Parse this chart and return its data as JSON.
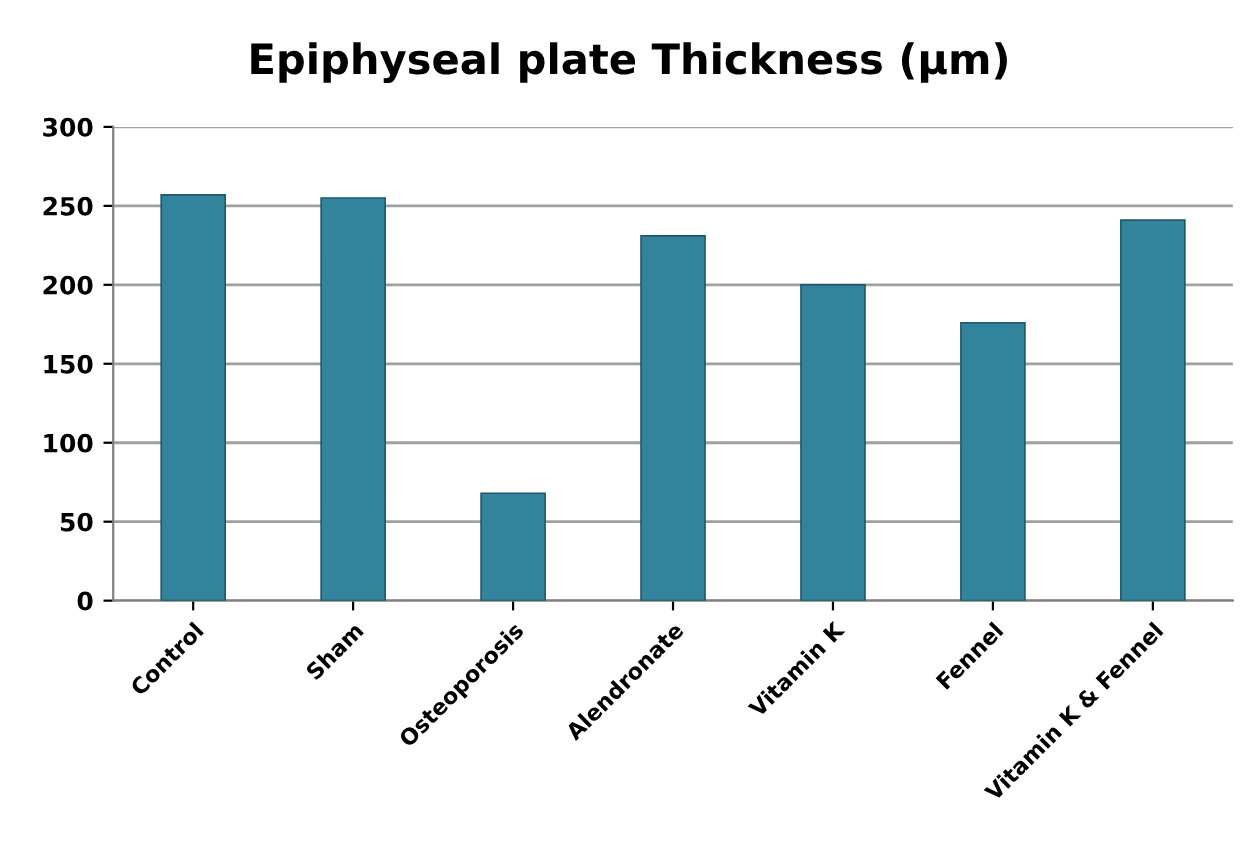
{
  "chart_data": {
    "type": "bar",
    "title": "Epiphyseal plate Thickness (µm)",
    "categories": [
      "Control",
      "Sham",
      "Osteoporosis",
      "Alendronate",
      "Vitamin K",
      "Fennel",
      "Vitamin K & Fennel"
    ],
    "values": [
      257,
      255,
      68,
      231,
      200,
      176,
      241
    ],
    "color": "#31849b",
    "ylim": [
      0,
      300
    ],
    "yticks": [
      0,
      50,
      100,
      150,
      200,
      250,
      300
    ],
    "grid": "y"
  }
}
